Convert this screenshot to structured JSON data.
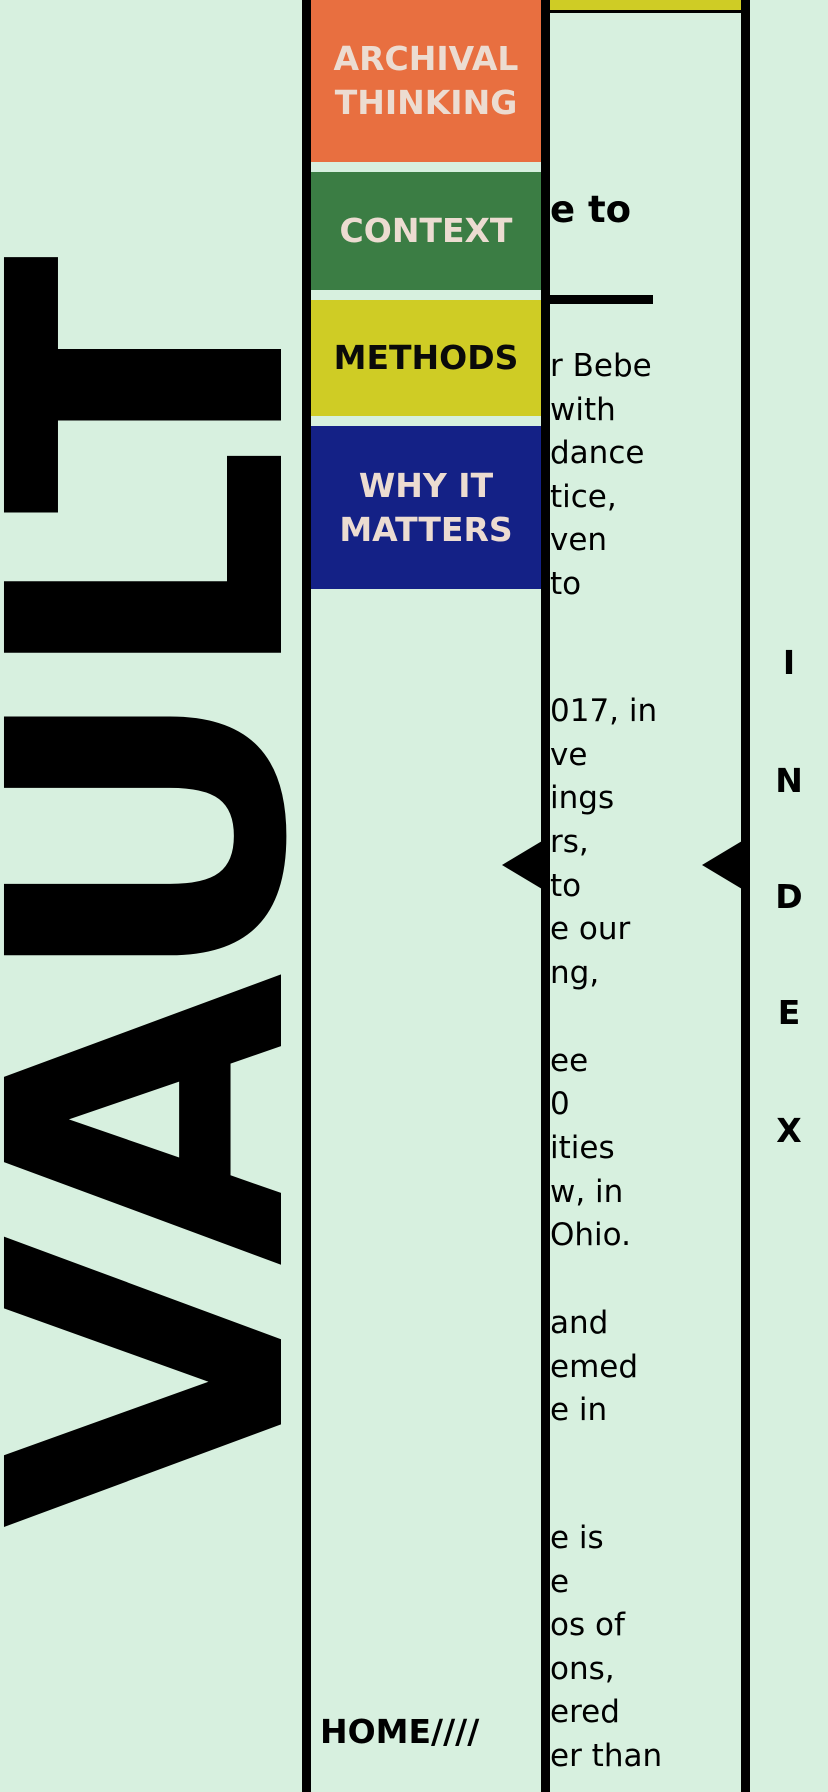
{
  "site": {
    "title": "VAULT"
  },
  "menu": {
    "items": [
      {
        "line1": "ARCHIVAL",
        "line2": "THINKING"
      },
      {
        "line1": "CONTEXT"
      },
      {
        "line1": "METHODS"
      },
      {
        "line1": "WHY IT",
        "line2": "MATTERS"
      }
    ]
  },
  "article": {
    "heading_fragment": "e to",
    "lines": [
      "r Bebe",
      "with",
      "dance",
      "tice,",
      "ven",
      "to",
      "017, in",
      "ve",
      "ings",
      "rs,",
      " to",
      "e our",
      "ng,",
      "ee",
      "0",
      "ities",
      "w, in",
      "Ohio.",
      " and",
      "emed",
      "e in",
      "e is",
      "e",
      "os of",
      "ons,",
      "ered",
      "er than"
    ]
  },
  "index_nav": {
    "letters": [
      "I",
      "N",
      "D",
      "E",
      "X"
    ]
  },
  "footer": {
    "home_label": "HOME////"
  },
  "icons": {
    "arrow": "triangle-left-icon"
  },
  "colors": {
    "background": "#d7f0df",
    "orange": "#e86f40",
    "green": "#3b7d44",
    "yellow": "#cfcc25",
    "navy": "#142186",
    "menu_text_light": "#ecdcd1"
  }
}
